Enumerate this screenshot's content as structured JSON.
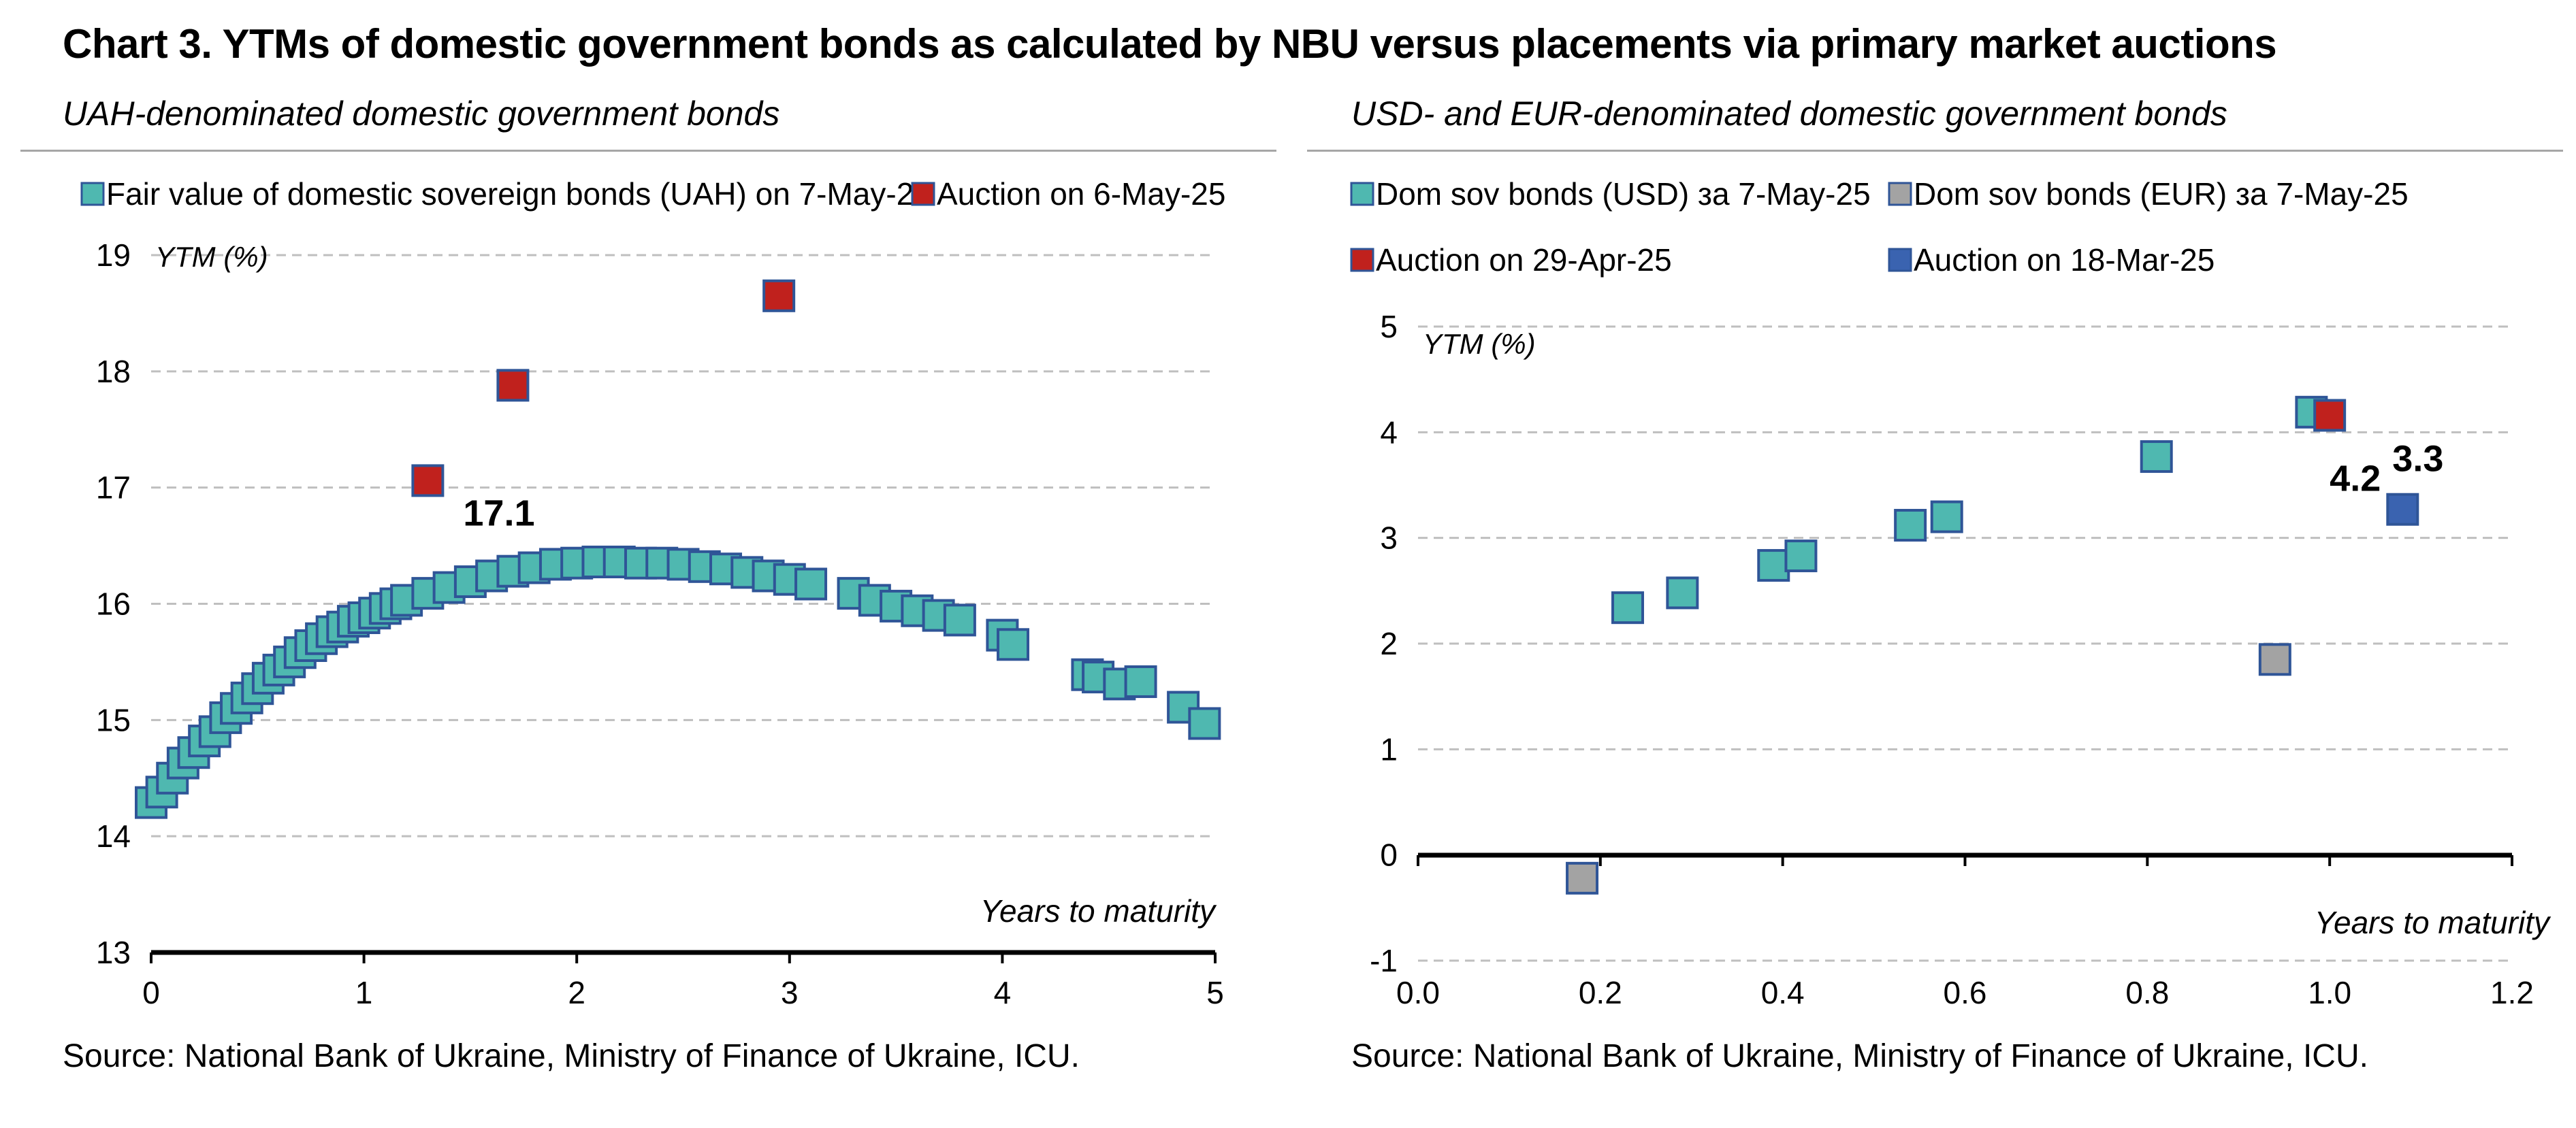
{
  "title": "Chart 3. YTMs of domestic government bonds as calculated by NBU versus placements via primary market auctions",
  "source_left": "Source: National Bank of Ukraine, Ministry of Finance of Ukraine, ICU.",
  "source_right": "Source: National Bank of Ukraine, Ministry of Finance of Ukraine, ICU.",
  "colors": {
    "teal": "#4fb8b0",
    "red": "#c0211d",
    "gray": "#a3a3a3",
    "blue": "#3a63b0",
    "marker_edge": "#2f5597",
    "grid": "#bfbfbf"
  },
  "chart_data": [
    {
      "type": "scatter",
      "title": "UAH-denominated domestic government bonds",
      "xlabel": "Years to maturity",
      "ylabel": "YTM (%)",
      "xlim": [
        0,
        5
      ],
      "ylim": [
        13,
        19
      ],
      "xticks": [
        "0",
        "1",
        "2",
        "3",
        "4",
        "5"
      ],
      "yticks": [
        "13",
        "14",
        "15",
        "16",
        "17",
        "18",
        "19"
      ],
      "grid": "horizontal dashed",
      "legend_position": "top",
      "series": [
        {
          "name": "Fair value of domestic sovereign bonds (UAH) on 7-May-25",
          "color": "teal",
          "points": [
            [
              0.0,
              14.29
            ],
            [
              0.05,
              14.38
            ],
            [
              0.1,
              14.5
            ],
            [
              0.15,
              14.63
            ],
            [
              0.2,
              14.72
            ],
            [
              0.25,
              14.82
            ],
            [
              0.3,
              14.9
            ],
            [
              0.35,
              15.02
            ],
            [
              0.4,
              15.1
            ],
            [
              0.45,
              15.19
            ],
            [
              0.5,
              15.27
            ],
            [
              0.55,
              15.36
            ],
            [
              0.6,
              15.43
            ],
            [
              0.65,
              15.5
            ],
            [
              0.7,
              15.58
            ],
            [
              0.75,
              15.64
            ],
            [
              0.8,
              15.7
            ],
            [
              0.85,
              15.76
            ],
            [
              0.9,
              15.8
            ],
            [
              0.95,
              15.85
            ],
            [
              1.0,
              15.88
            ],
            [
              1.05,
              15.92
            ],
            [
              1.1,
              15.96
            ],
            [
              1.15,
              16.0
            ],
            [
              1.2,
              16.03
            ],
            [
              1.3,
              16.09
            ],
            [
              1.4,
              16.14
            ],
            [
              1.5,
              16.19
            ],
            [
              1.6,
              16.24
            ],
            [
              1.7,
              16.28
            ],
            [
              1.8,
              16.31
            ],
            [
              1.9,
              16.34
            ],
            [
              2.0,
              16.35
            ],
            [
              2.1,
              16.36
            ],
            [
              2.2,
              16.36
            ],
            [
              2.3,
              16.35
            ],
            [
              2.4,
              16.35
            ],
            [
              2.5,
              16.34
            ],
            [
              2.6,
              16.32
            ],
            [
              2.7,
              16.3
            ],
            [
              2.8,
              16.27
            ],
            [
              2.9,
              16.24
            ],
            [
              3.0,
              16.21
            ],
            [
              3.1,
              16.17
            ],
            [
              3.3,
              16.09
            ],
            [
              3.4,
              16.03
            ],
            [
              3.5,
              15.98
            ],
            [
              3.6,
              15.94
            ],
            [
              3.7,
              15.9
            ],
            [
              3.8,
              15.86
            ],
            [
              4.0,
              15.73
            ],
            [
              4.05,
              15.65
            ],
            [
              4.4,
              15.39
            ],
            [
              4.45,
              15.37
            ],
            [
              4.55,
              15.31
            ],
            [
              4.65,
              15.33
            ],
            [
              4.85,
              15.11
            ],
            [
              4.95,
              14.97
            ]
          ]
        },
        {
          "name": "Auction on 6-May-25",
          "color": "red",
          "points": [
            [
              1.3,
              17.06
            ],
            [
              1.7,
              17.88
            ],
            [
              2.95,
              18.65
            ]
          ]
        }
      ],
      "annotations": [
        {
          "x": 1.3,
          "y": 17.06,
          "text": "17.1"
        }
      ]
    },
    {
      "type": "scatter",
      "title": "USD- and EUR-denominated domestic government bonds",
      "xlabel": "Years to maturity",
      "ylabel": "YTM (%)",
      "xlim": [
        0,
        1.2
      ],
      "ylim": [
        -1,
        5
      ],
      "xticks": [
        "0.0",
        "0.2",
        "0.4",
        "0.6",
        "0.8",
        "1.0",
        "1.2"
      ],
      "yticks": [
        "-1",
        "0",
        "1",
        "2",
        "3",
        "4",
        "5"
      ],
      "grid": "horizontal dashed",
      "legend_position": "top",
      "series": [
        {
          "name": "Dom sov bonds (USD) за 7-May-25",
          "color": "teal",
          "points": [
            [
              0.23,
              2.34
            ],
            [
              0.29,
              2.48
            ],
            [
              0.39,
              2.74
            ],
            [
              0.42,
              2.83
            ],
            [
              0.54,
              3.12
            ],
            [
              0.58,
              3.2
            ],
            [
              0.81,
              3.77
            ],
            [
              0.98,
              4.19
            ]
          ]
        },
        {
          "name": "Dom sov bonds (EUR) за 7-May-25",
          "color": "gray",
          "points": [
            [
              0.18,
              -0.22
            ],
            [
              0.94,
              1.85
            ]
          ]
        },
        {
          "name": "Auction on 29-Apr-25",
          "color": "red",
          "points": [
            [
              1.0,
              4.16
            ]
          ]
        },
        {
          "name": "Auction on 18-Mar-25",
          "color": "blue",
          "points": [
            [
              1.08,
              3.27
            ]
          ]
        }
      ],
      "annotations": [
        {
          "x": 1.0,
          "y": 4.16,
          "text": "4.2"
        },
        {
          "x": 1.08,
          "y": 3.27,
          "text": "3.3"
        }
      ]
    }
  ]
}
